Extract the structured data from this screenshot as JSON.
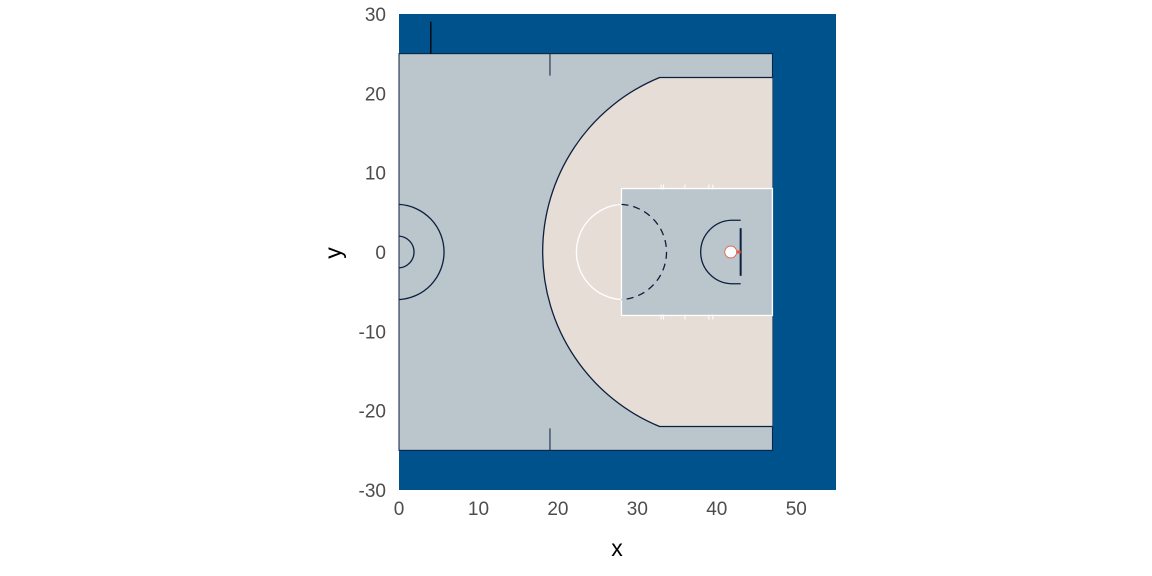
{
  "chart_data": {
    "type": "diagram",
    "xlabel": "x",
    "ylabel": "y",
    "xlim": [
      0,
      55
    ],
    "ylim": [
      -30,
      30
    ],
    "x_ticks": [
      0,
      10,
      20,
      30,
      40,
      50
    ],
    "y_ticks": [
      -30,
      -20,
      -10,
      0,
      10,
      20,
      30
    ],
    "x_tick_labels": [
      "0",
      "10",
      "20",
      "30",
      "40",
      "50"
    ],
    "y_tick_labels": [
      "-30",
      "-20",
      "-10",
      "0",
      "10",
      "20",
      "30"
    ],
    "court": {
      "half_length": 47,
      "half_width": 25,
      "center_circle_outer_radius": 6,
      "center_circle_inner_radius": 2,
      "three_point_radius": 23.75,
      "three_point_corner_y": 22,
      "three_point_corner_x_start": 33,
      "key_x_start": 28,
      "key_half_width": 8,
      "free_throw_circle_center_x": 28,
      "free_throw_circle_radius": 6,
      "restricted_area_radius": 4,
      "restricted_area_center_x": 41.75,
      "backboard_x": 43,
      "backboard_half_width": 3,
      "hoop_center_x": 41.75,
      "hoop_radius": 0.75,
      "substitution_mark_x": 19,
      "sideline_tick_x": 4
    },
    "colors": {
      "outer_background": "#00528c",
      "court_floor": "#bac5cc",
      "two_point_area": "#e6ddd6",
      "key_paint": "#bac5cc",
      "lines": "#0d1f3f",
      "key_lines": "#ffffff",
      "hoop": "#ffffff",
      "rim_connector": "#e25848"
    }
  }
}
